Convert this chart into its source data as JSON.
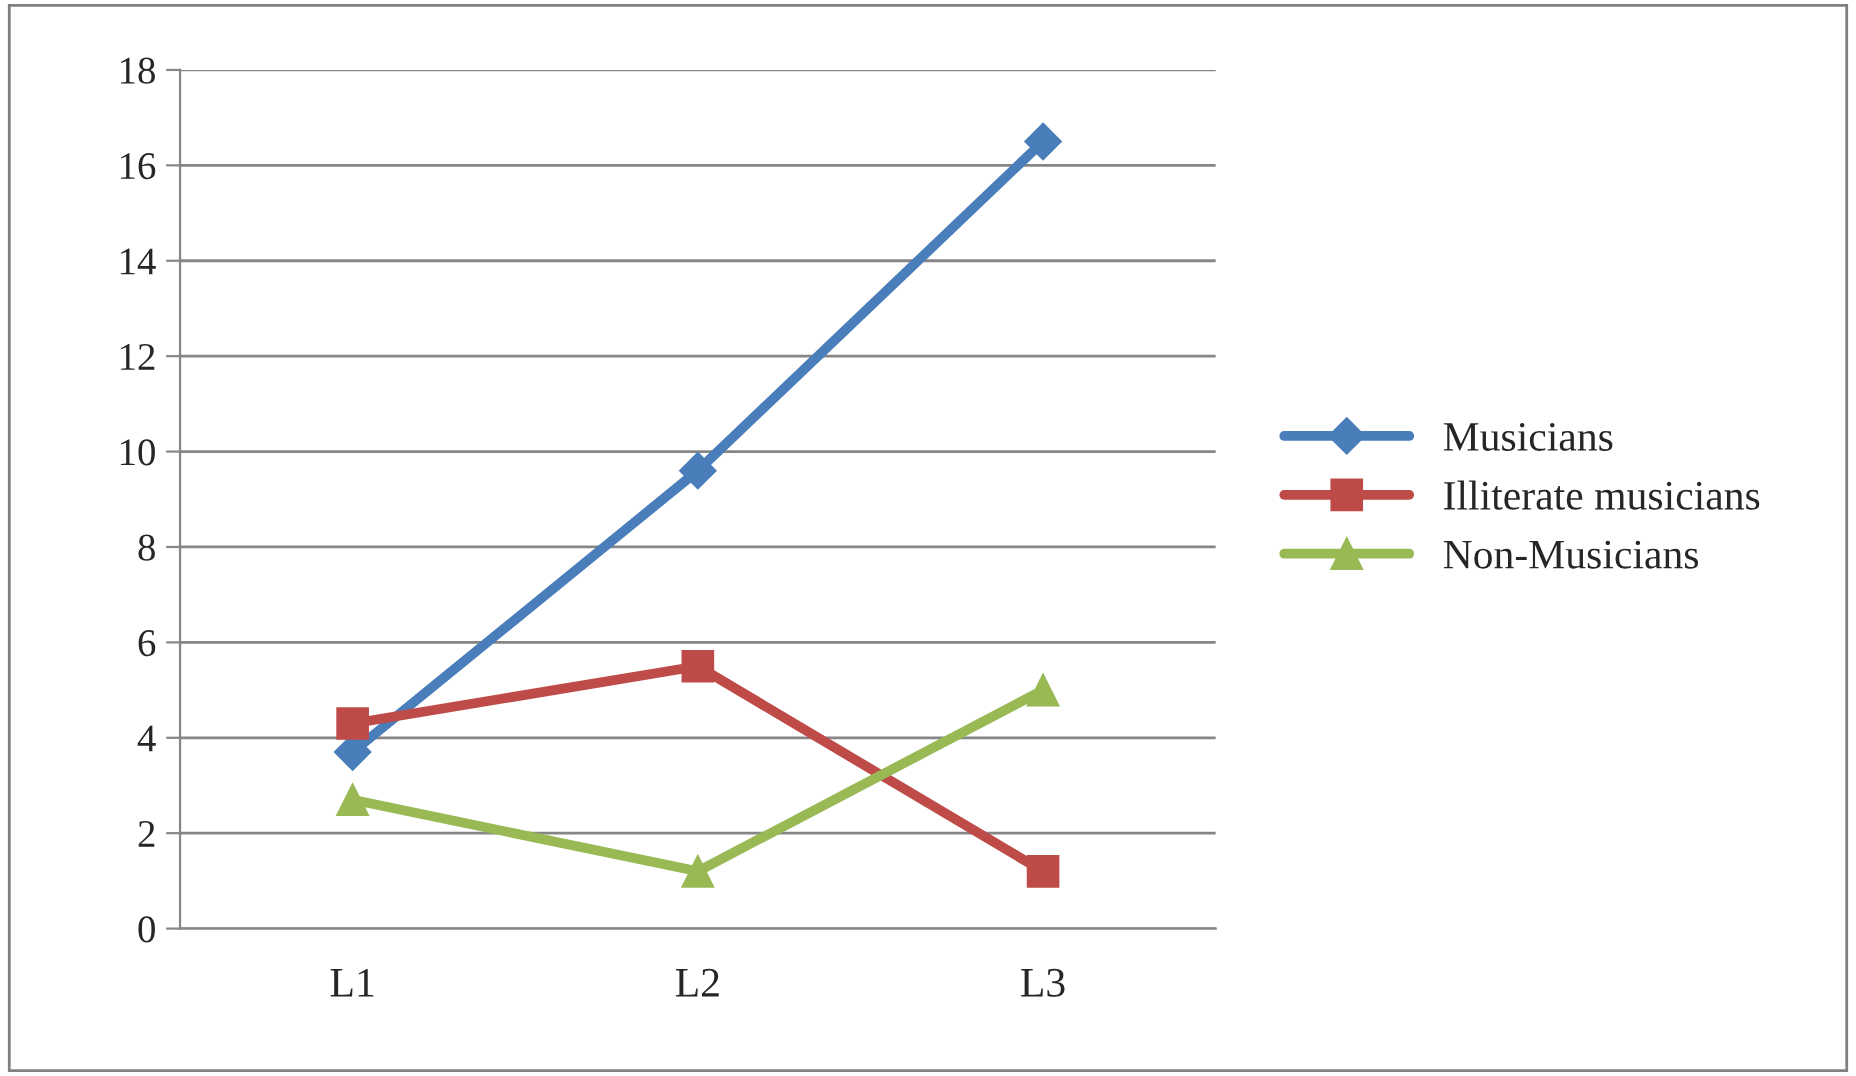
{
  "chart_data": {
    "type": "line",
    "categories": [
      "L1",
      "L2",
      "L3"
    ],
    "series": [
      {
        "name": "Musicians",
        "color": "#4a7ebb",
        "marker": "diamond",
        "values": [
          3.7,
          9.6,
          16.5
        ]
      },
      {
        "name": "Illiterate musicians",
        "color": "#be4b48",
        "marker": "square",
        "values": [
          4.3,
          5.5,
          1.2
        ]
      },
      {
        "name": "Non-Musicians",
        "color": "#98b954",
        "marker": "triangle",
        "values": [
          2.7,
          1.2,
          5.0
        ]
      }
    ],
    "ylim": [
      0,
      18
    ],
    "yticks": [
      0,
      2,
      4,
      6,
      8,
      10,
      12,
      14,
      16,
      18
    ],
    "grid": "y",
    "legend": "right",
    "line_style": "solid"
  }
}
